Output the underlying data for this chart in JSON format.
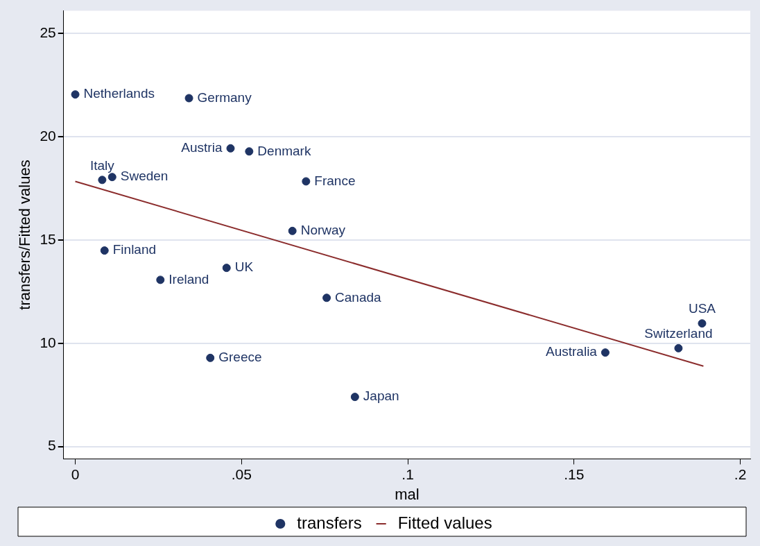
{
  "chart_data": {
    "type": "scatter",
    "xlabel": "mal",
    "ylabel": "transfers/Fitted values",
    "xlim": [
      -0.0035,
      0.203
    ],
    "ylim": [
      4.4,
      26.1
    ],
    "xticks": [
      {
        "value": 0,
        "label": "0"
      },
      {
        "value": 0.05,
        "label": ".05"
      },
      {
        "value": 0.1,
        "label": ".1"
      },
      {
        "value": 0.15,
        "label": ".15"
      },
      {
        "value": 0.2,
        "label": ".2"
      }
    ],
    "yticks": [
      5,
      10,
      15,
      20,
      25
    ],
    "grid": "y",
    "legend": "bottom",
    "series": [
      {
        "name": "transfers",
        "marker": "circle",
        "color": "#1f3464",
        "x": [
          0,
          0.0342,
          0.0467,
          0.0523,
          0.0111,
          0.0081,
          0.0694,
          0.0653,
          0.0088,
          0.0455,
          0.0256,
          0.0756,
          0.0406,
          0.0841,
          0.1594,
          0.1814,
          0.1885
        ],
        "values": [
          22.05,
          21.87,
          19.44,
          19.29,
          18.05,
          17.91,
          17.84,
          15.44,
          14.49,
          13.65,
          13.07,
          12.2,
          9.29,
          7.4,
          9.55,
          9.76,
          10.96
        ]
      },
      {
        "name": "Fitted values",
        "type": "line",
        "marker": "none",
        "color": "#8b2c2c",
        "x": [
          0,
          0.1889
        ],
        "values": [
          17.84,
          8.89
        ]
      }
    ],
    "annotations": [
      {
        "text": "Netherlands",
        "x": 0,
        "y": 22.05
      },
      {
        "text": "Germany",
        "x": 0.0342,
        "y": 21.87
      },
      {
        "text": "Austria",
        "x": 0.0467,
        "y": 19.44
      },
      {
        "text": "Denmark",
        "x": 0.0523,
        "y": 19.29
      },
      {
        "text": "Sweden",
        "x": 0.0111,
        "y": 18.05
      },
      {
        "text": "Italy",
        "x": 0.0081,
        "y": 17.91
      },
      {
        "text": "France",
        "x": 0.0694,
        "y": 17.84
      },
      {
        "text": "Norway",
        "x": 0.0653,
        "y": 15.44
      },
      {
        "text": "Finland",
        "x": 0.0088,
        "y": 14.49
      },
      {
        "text": "UK",
        "x": 0.0455,
        "y": 13.65
      },
      {
        "text": "Ireland",
        "x": 0.0256,
        "y": 13.07
      },
      {
        "text": "Canada",
        "x": 0.0756,
        "y": 12.2
      },
      {
        "text": "Greece",
        "x": 0.0406,
        "y": 9.29
      },
      {
        "text": "Japan",
        "x": 0.0841,
        "y": 7.4
      },
      {
        "text": "Australia",
        "x": 0.1594,
        "y": 9.55
      },
      {
        "text": "Switzerland",
        "x": 0.1814,
        "y": 9.76
      },
      {
        "text": "USA",
        "x": 0.1885,
        "y": 10.96
      }
    ]
  }
}
